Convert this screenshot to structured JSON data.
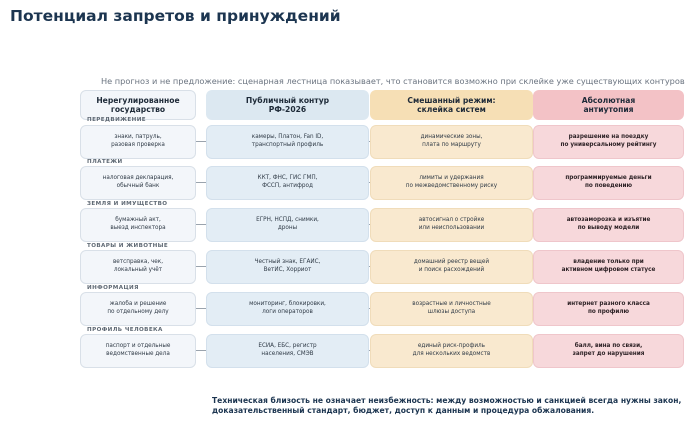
{
  "title": "Потенциал запретов и принуждений",
  "subtitle": "Не прогноз и не предложение: сценарная лестница показывает, что становится возможно при склейке уже существующих контуров",
  "columns": [
    "Нерегулированное\nгосударство",
    "Публичный контур\nРФ-2026",
    "Смешанный режим:\nсклейка систем",
    "Абсолютная\nантиутопия"
  ],
  "rows": [
    {
      "label": "ПЕРЕДВИЖЕНИЕ",
      "cells": [
        "знаки, патруль,\nразовая проверка",
        "камеры, Платон, Fan ID,\nтранспортный профиль",
        "динамические зоны,\nплата по маршруту",
        "разрешение на поездку\nпо универсальному рейтингу"
      ]
    },
    {
      "label": "ПЛАТЕЖИ",
      "cells": [
        "налоговая декларация,\nобычный банк",
        "ККТ, ФНС, ГИС ГМП,\nФССП, антифрод",
        "лимиты и удержания\nпо межведомственному риску",
        "программируемые деньги\nпо поведению"
      ]
    },
    {
      "label": "ЗЕМЛЯ И ИМУЩЕСТВО",
      "cells": [
        "бумажный акт,\nвыезд инспектора",
        "ЕГРН, НСПД, снимки,\nдроны",
        "автосигнал о стройке\nили неиспользовании",
        "автозаморозка и изъятие\nпо выводу модели"
      ]
    },
    {
      "label": "ТОВАРЫ И ЖИВОТНЫЕ",
      "cells": [
        "ветсправка, чек,\nлокальный учёт",
        "Честный знак, ЕГАИС,\nВетИС, Хорриот",
        "домашний реестр вещей\nи поиск расхождений",
        "владение только при\nактивном цифровом статусе"
      ]
    },
    {
      "label": "ИНФОРМАЦИЯ",
      "cells": [
        "жалоба и решение\nпо отдельному делу",
        "мониторинг, блокировки,\nлоги операторов",
        "возрастные и личностные\nшлюзы доступа",
        "интернет разного класса\nпо профилю"
      ]
    },
    {
      "label": "ПРОФИЛЬ ЧЕЛОВЕКА",
      "cells": [
        "паспорт и отдельные\nведомственные дела",
        "ЕСИА, ЕБС, регистр\nнаселения, СМЭВ",
        "единый риск-профиль\nдля нескольких ведомств",
        "балл, вина по связи,\nзапрет до нарушения"
      ]
    }
  ],
  "footnote": "Техническая близость не означает неизбежность: между возможностью и санкцией всегда нужны закон, доказательственный стандарт, бюджет, доступ к данным и процедура обжалования."
}
